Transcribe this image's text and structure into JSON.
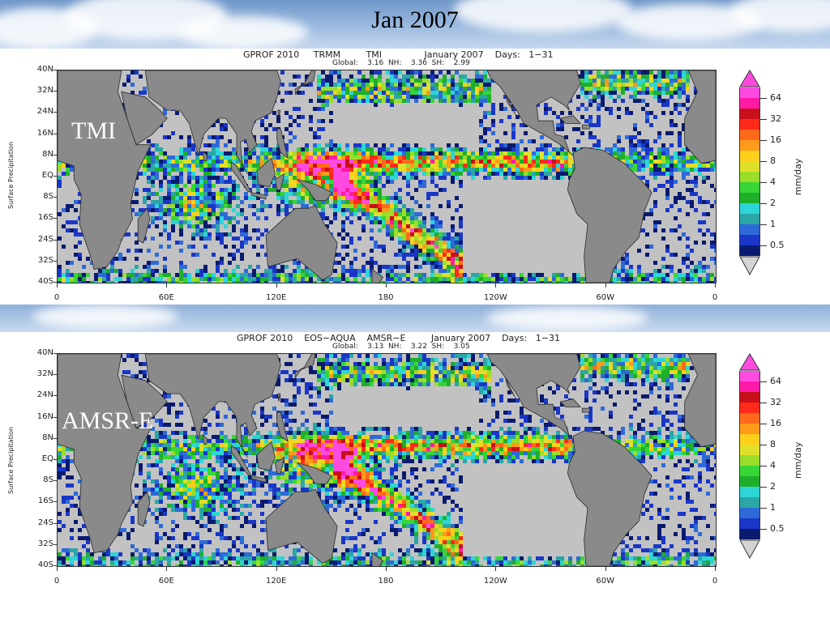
{
  "slide": {
    "title": "Jan 2007"
  },
  "colors": {
    "ocean_gray": "#c2c2c2",
    "land_gray": "#8a8a8a",
    "colorbar": [
      "#0a1a6e",
      "#1a36c8",
      "#2d6ad8",
      "#2aa6a6",
      "#2dd6d6",
      "#1fae2a",
      "#36d636",
      "#9ade2a",
      "#e0e02a",
      "#ffcf1a",
      "#ff9a1a",
      "#ff6a1a",
      "#ff2a1a",
      "#c8101a",
      "#ff1aa6",
      "#ff4ae0"
    ]
  },
  "panels": [
    {
      "header_line1": "GPROF 2010     TRMM         TMI               January 2007    Days:   1−31",
      "header_line2": "Global:    3.16  NH:    3.36  SH:    2.99",
      "sensor_label": "TMI",
      "y_axis_title": "Surface Precipitation",
      "lat_labels": [
        "40N",
        "32N",
        "24N",
        "16N",
        "8N",
        "EQ",
        "8S",
        "16S",
        "24S",
        "32S",
        "40S"
      ],
      "lon_labels": [
        "0",
        "60E",
        "120E",
        "180",
        "120W",
        "60W",
        "0"
      ],
      "colorbar_ticks": [
        "64",
        "32",
        "16",
        "8",
        "4",
        "2",
        "1",
        "0.5"
      ],
      "colorbar_unit": "mm/day"
    },
    {
      "header_line1": "GPROF 2010    EOS−AQUA    AMSR−E         January 2007    Days:   1−31",
      "header_line2": "Global:    3.13  NH:    3.22  SH:    3.05",
      "sensor_label": "AMSR-E",
      "y_axis_title": "Surface Precipitation",
      "lat_labels": [
        "40N",
        "32N",
        "24N",
        "16N",
        "8N",
        "EQ",
        "8S",
        "16S",
        "24S",
        "32S",
        "40S"
      ],
      "lon_labels": [
        "0",
        "60E",
        "120E",
        "180",
        "120W",
        "60W",
        "0"
      ],
      "colorbar_ticks": [
        "64",
        "32",
        "16",
        "8",
        "4",
        "2",
        "1",
        "0.5"
      ],
      "colorbar_unit": "mm/day"
    }
  ]
}
